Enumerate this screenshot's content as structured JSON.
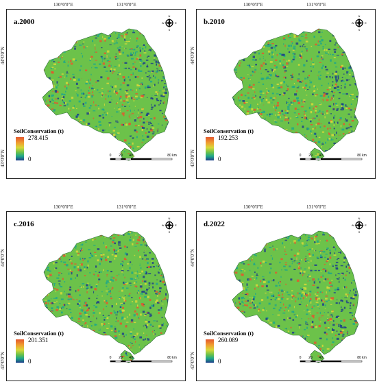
{
  "coordinates": {
    "top_left": "130°0'0\"E",
    "top_right": "131°0'0\"E",
    "left_top": "44°0'0\"N",
    "left_bottom": "43°0'0\"N"
  },
  "legend_title": "SoilConservation (t)",
  "legend_min": "0",
  "scale_bar": {
    "ticks": [
      "0",
      "20",
      "40",
      "80 km"
    ]
  },
  "compass": {
    "n": "N",
    "s": "S",
    "e": "E",
    "w": "W"
  },
  "panels": [
    {
      "label": "a.2000",
      "max": "278.415"
    },
    {
      "label": "b.2010",
      "max": "192.253"
    },
    {
      "label": "c.2016",
      "max": "201.351"
    },
    {
      "label": "d.2022",
      "max": "260.089"
    }
  ],
  "colors": {
    "low": "#1f3f8a",
    "mid_low": "#1fa78a",
    "mid": "#6cc24a",
    "mid_high": "#d8d83a",
    "high": "#e4572e"
  }
}
